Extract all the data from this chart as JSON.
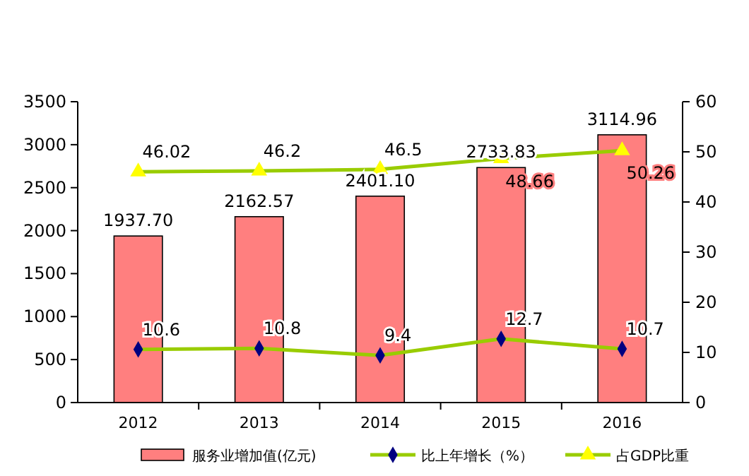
{
  "chart_data": {
    "type": "bar",
    "categories": [
      "2012",
      "2013",
      "2014",
      "2015",
      "2016"
    ],
    "series": [
      {
        "name": "服务业增加值(亿元)",
        "color": "#ff7f7f",
        "values": [
          1937.7,
          2162.57,
          2401.1,
          2733.83,
          3114.96
        ],
        "value_labels": [
          "1937.70",
          "2162.57",
          "2401.10",
          "2733.83",
          "3114.96"
        ]
      },
      {
        "name": "比上年增长（%）",
        "type": "line",
        "axis": "y2",
        "color": "#99cc00",
        "marker": "diamond",
        "values": [
          10.6,
          10.8,
          9.4,
          12.7,
          10.7
        ]
      },
      {
        "name": "占GDP比重",
        "type": "line",
        "axis": "y2",
        "color": "#99cc00",
        "marker": "triangle",
        "values": [
          46.02,
          46.2,
          46.5,
          48.66,
          50.26
        ]
      }
    ],
    "ylim": [
      0,
      3500
    ],
    "yticks": [
      0,
      500,
      1000,
      1500,
      2000,
      2500,
      3000,
      3500
    ],
    "y2lim": [
      0,
      60
    ],
    "y2ticks": [
      0,
      10,
      20,
      30,
      40,
      50,
      60
    ],
    "data_labels": true,
    "legend": "bottom",
    "grid": false
  }
}
